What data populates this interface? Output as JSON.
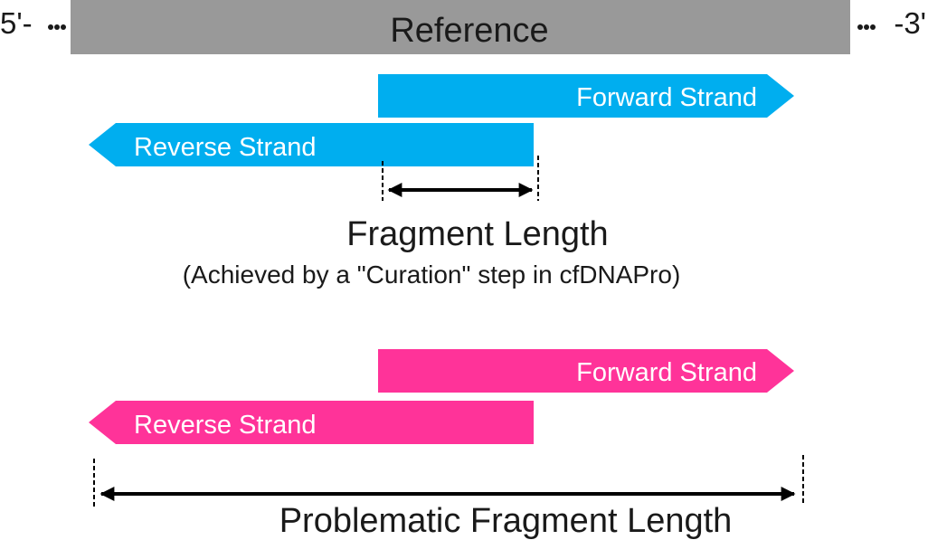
{
  "reference": {
    "label": "Reference",
    "left_end": "5'-",
    "right_end": "-3'",
    "color": "#999999"
  },
  "correct_case": {
    "color": "#00AEEF",
    "forward_label": "Forward Strand",
    "reverse_label": "Reverse Strand",
    "length_label": "Fragment Length",
    "note": "(Achieved by a \"Curation\" step in cfDNAPro)"
  },
  "problem_case": {
    "color": "#FF3399",
    "forward_label": "Forward Strand",
    "reverse_label": "Reverse Strand",
    "length_label": "Problematic Fragment Length"
  },
  "ink_color": "#000000",
  "text_on_strand_color": "#ffffff",
  "text_color": "#1a1a1a"
}
